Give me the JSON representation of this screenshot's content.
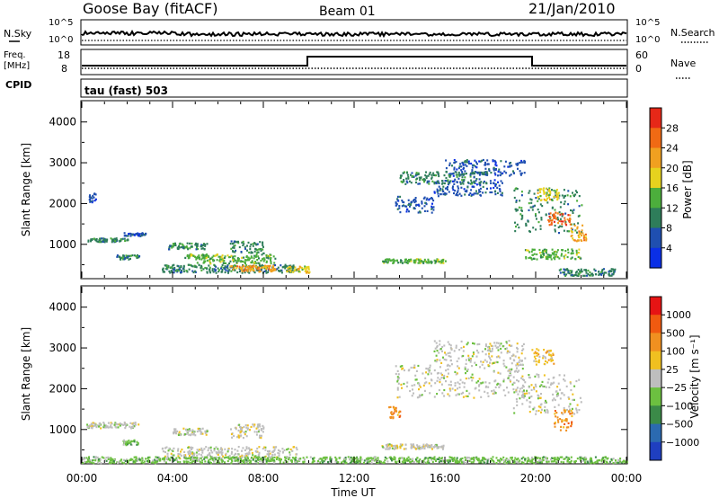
{
  "header": {
    "station": "Goose Bay (fitACF)",
    "beam": "Beam 01",
    "date": "21/Jan/2010"
  },
  "summary": {
    "nsky_label": "N.Sky",
    "nsky_ticks": [
      "10^5",
      "10^0"
    ],
    "nsearch_label": "N.Search",
    "freq_label_line1": "Freq.",
    "freq_label_line2": "[MHz]",
    "freq_ticks": [
      "18",
      "8"
    ],
    "nave_label": "Nave",
    "nave_ticks": [
      "60",
      "0"
    ],
    "cpid_label": "CPID",
    "cpid_value": "tau (fast) 503"
  },
  "chart_data": [
    {
      "type": "heatmap",
      "name": "power",
      "ylabel": "Slant Range [km]",
      "yticks": [
        "1000",
        "2000",
        "3000",
        "4000"
      ],
      "ylim": [
        180,
        4500
      ],
      "colorbar": {
        "label": "Power [dB]",
        "ticks": [
          "4",
          "8",
          "12",
          "16",
          "20",
          "24",
          "28"
        ],
        "colors": [
          "#0a2fe6",
          "#1f4fb0",
          "#2e7d5a",
          "#4cae3c",
          "#e6d21e",
          "#f0a020",
          "#f06a14",
          "#e62818"
        ]
      },
      "blobs": [
        {
          "t": 0.2,
          "t2": 2.0,
          "r": 1080,
          "r2": 1170,
          "level": 2
        },
        {
          "t": 1.8,
          "t2": 2.8,
          "r": 1220,
          "r2": 1300,
          "level": 1
        },
        {
          "t": 0.3,
          "t2": 0.6,
          "r": 2050,
          "r2": 2300,
          "level": 1
        },
        {
          "t": 1.5,
          "t2": 2.5,
          "r": 650,
          "r2": 760,
          "level": 2
        },
        {
          "t": 3.8,
          "t2": 5.5,
          "r": 900,
          "r2": 1050,
          "level": 2
        },
        {
          "t": 4.5,
          "t2": 5.5,
          "r": 680,
          "r2": 780,
          "level": 3
        },
        {
          "t": 3.5,
          "t2": 9.5,
          "r": 320,
          "r2": 520,
          "level": 2
        },
        {
          "t": 5.0,
          "t2": 8.5,
          "r": 550,
          "r2": 780,
          "level": 3
        },
        {
          "t": 6.5,
          "t2": 8.0,
          "r": 800,
          "r2": 1100,
          "level": 2
        },
        {
          "t": 6.5,
          "t2": 8.5,
          "r": 350,
          "r2": 500,
          "level": 5
        },
        {
          "t": 9.0,
          "t2": 10.0,
          "r": 320,
          "r2": 480,
          "level": 4
        },
        {
          "t": 13.8,
          "t2": 15.5,
          "r": 1800,
          "r2": 2200,
          "level": 1
        },
        {
          "t": 15.5,
          "t2": 18.5,
          "r": 2200,
          "r2": 2600,
          "level": 1
        },
        {
          "t": 16.0,
          "t2": 19.5,
          "r": 2700,
          "r2": 3100,
          "level": 1
        },
        {
          "t": 14.0,
          "t2": 18.0,
          "r": 2500,
          "r2": 2800,
          "level": 2
        },
        {
          "t": 13.2,
          "t2": 16.0,
          "r": 560,
          "r2": 660,
          "level": 3
        },
        {
          "t": 19.0,
          "t2": 22.0,
          "r": 1300,
          "r2": 2400,
          "level": 2
        },
        {
          "t": 20.5,
          "t2": 21.5,
          "r": 1500,
          "r2": 1800,
          "level": 6
        },
        {
          "t": 21.5,
          "t2": 22.2,
          "r": 1100,
          "r2": 1500,
          "level": 5
        },
        {
          "t": 20.0,
          "t2": 21.0,
          "r": 2100,
          "r2": 2400,
          "level": 4
        },
        {
          "t": 21.0,
          "t2": 23.5,
          "r": 250,
          "r2": 420,
          "level": 2
        },
        {
          "t": 19.5,
          "t2": 22.0,
          "r": 650,
          "r2": 900,
          "level": 3
        }
      ]
    },
    {
      "type": "heatmap",
      "name": "velocity",
      "xlabel": "Time UT",
      "ylabel": "Slant Range [km]",
      "xticks": [
        "00:00",
        "04:00",
        "08:00",
        "12:00",
        "16:00",
        "20:00",
        "00:00"
      ],
      "yticks": [
        "1000",
        "2000",
        "3000",
        "4000"
      ],
      "xlim": [
        0,
        24
      ],
      "ylim": [
        180,
        4500
      ],
      "colorbar": {
        "label": "Velocity [m s⁻¹]",
        "ticks": [
          "1000",
          "500",
          "100",
          "25",
          "−25",
          "−100",
          "−500",
          "−1000"
        ],
        "colors": [
          "#1f3fc0",
          "#2b6ab0",
          "#3b8a48",
          "#6cc040",
          "#bebebe",
          "#f0c020",
          "#f09020",
          "#f05a10",
          "#e61414"
        ]
      },
      "blobs": [
        {
          "t": 0.2,
          "t2": 2.5,
          "r": 1050,
          "r2": 1200,
          "level": 4
        },
        {
          "t": 1.8,
          "t2": 2.5,
          "r": 640,
          "r2": 760,
          "level": 3
        },
        {
          "t": 3.5,
          "t2": 9.5,
          "r": 300,
          "r2": 600,
          "level": 4
        },
        {
          "t": 6.5,
          "t2": 8.0,
          "r": 800,
          "r2": 1150,
          "level": 4
        },
        {
          "t": 4.0,
          "t2": 5.5,
          "r": 880,
          "r2": 1050,
          "level": 4
        },
        {
          "t": 13.8,
          "t2": 19.5,
          "r": 1800,
          "r2": 2600,
          "level": 4
        },
        {
          "t": 15.5,
          "t2": 19.5,
          "r": 2600,
          "r2": 3200,
          "level": 4
        },
        {
          "t": 13.5,
          "t2": 14.0,
          "r": 1300,
          "r2": 1600,
          "level": 6
        },
        {
          "t": 13.2,
          "t2": 16.0,
          "r": 540,
          "r2": 660,
          "level": 4
        },
        {
          "t": 19.0,
          "t2": 22.0,
          "r": 1400,
          "r2": 2400,
          "level": 4
        },
        {
          "t": 20.8,
          "t2": 21.6,
          "r": 1000,
          "r2": 1500,
          "level": 6
        },
        {
          "t": 19.8,
          "t2": 20.8,
          "r": 2600,
          "r2": 3000,
          "level": 5
        },
        {
          "t": 0.0,
          "t2": 24.0,
          "r": 200,
          "r2": 350,
          "level": 3
        }
      ]
    }
  ]
}
